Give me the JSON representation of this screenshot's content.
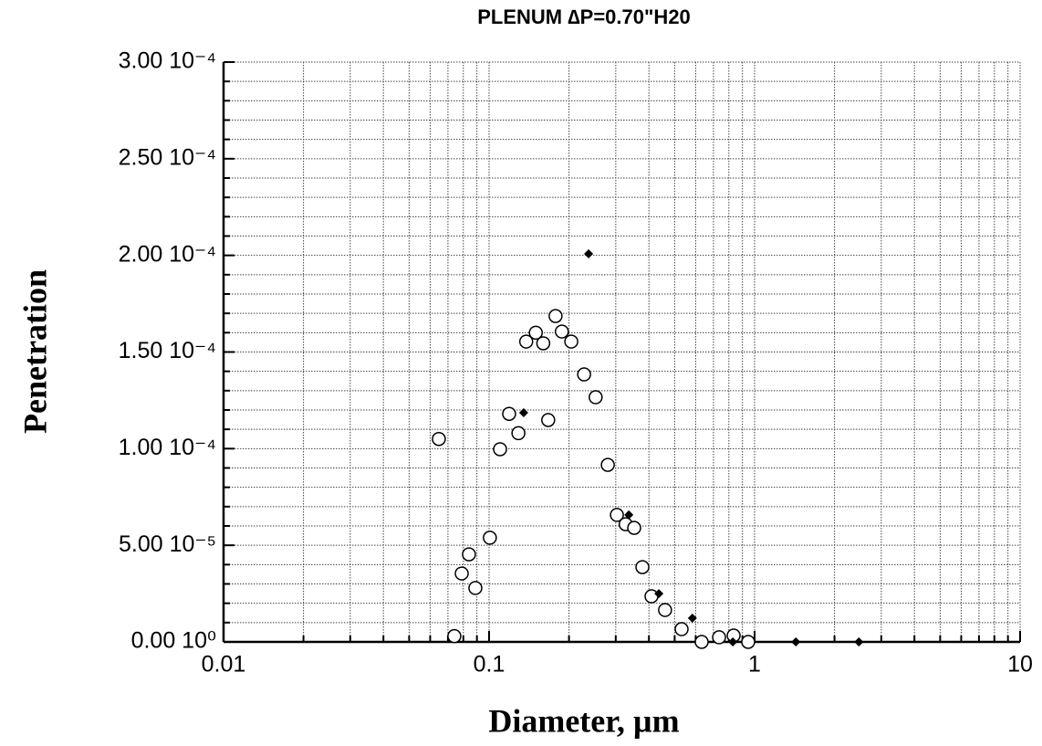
{
  "chart_data": {
    "type": "scatter",
    "title": "PLENUM  ∆P=0.70\"H20",
    "x_label": "Diameter, µm",
    "y_label": "Penetration",
    "xscale": "log",
    "xlim": [
      0.01,
      10
    ],
    "xticks": [
      0.01,
      0.1,
      1,
      10
    ],
    "ylim": [
      0,
      0.0003
    ],
    "yticks": [
      {
        "value": 0,
        "label": "0.00 10⁰"
      },
      {
        "value": 5e-05,
        "label": "5.00 10⁻⁵"
      },
      {
        "value": 0.0001,
        "label": "1.00 10⁻⁴"
      },
      {
        "value": 0.00015,
        "label": "1.50 10⁻⁴"
      },
      {
        "value": 0.0002,
        "label": "2.00 10⁻⁴"
      },
      {
        "value": 0.00025,
        "label": "2.50 10⁻⁴"
      },
      {
        "value": 0.0003,
        "label": "3.00 10⁻⁴"
      }
    ],
    "grid": true,
    "minor_grid": true,
    "series": [
      {
        "marker": "open-circle",
        "color": "#000000",
        "x": [
          0.0647,
          0.074,
          0.0789,
          0.084,
          0.0888,
          0.1007,
          0.11,
          0.119,
          0.129,
          0.138,
          0.15,
          0.16,
          0.167,
          0.178,
          0.188,
          0.204,
          0.228,
          0.252,
          0.28,
          0.303,
          0.327,
          0.352,
          0.378,
          0.409,
          0.46,
          0.531,
          0.632,
          0.735,
          0.834,
          0.946
        ],
        "values": [
          0.000105,
          3e-06,
          3.54e-05,
          4.53e-05,
          2.79e-05,
          5.39e-05,
          9.97e-05,
          0.000118,
          0.000108,
          0.0001554,
          0.00016,
          0.0001545,
          0.0001148,
          0.0001686,
          0.0001606,
          0.0001554,
          0.0001384,
          0.0001266,
          9.16e-05,
          6.57e-05,
          6.09e-05,
          5.9e-05,
          3.87e-05,
          2.36e-05,
          1.65e-05,
          6.6e-06,
          0,
          2.4e-06,
          3.3e-06,
          0
        ]
      },
      {
        "marker": "filled-diamond",
        "color": "#000000",
        "x": [
          0.237,
          0.135,
          0.336,
          0.436,
          0.583,
          0.828,
          1.43,
          2.47
        ],
        "values": [
          0.0002008,
          0.0001186,
          6.57e-05,
          2.5e-05,
          1.23e-05,
          0,
          0,
          0
        ]
      }
    ]
  }
}
